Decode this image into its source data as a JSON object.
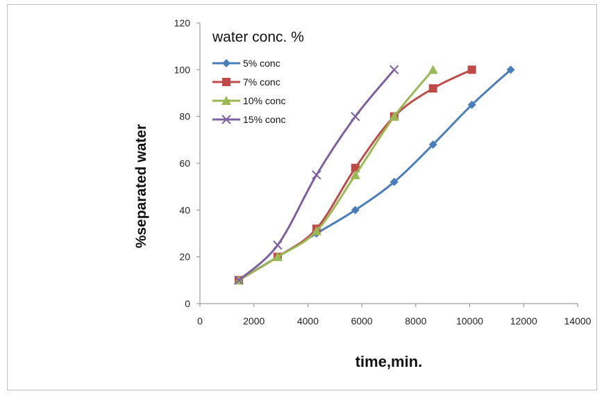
{
  "chart_data": {
    "type": "line",
    "title": "",
    "xlabel": "time,min.",
    "ylabel": "%separated  water",
    "xlim": [
      0,
      14000
    ],
    "ylim": [
      0,
      120
    ],
    "xticks": [
      0,
      2000,
      4000,
      6000,
      8000,
      10000,
      12000,
      14000
    ],
    "xtick_labels": [
      "0",
      "2000",
      "4000",
      "6000",
      "8000",
      "10000",
      "12000",
      "14000"
    ],
    "yticks": [
      0,
      20,
      40,
      60,
      80,
      100,
      120
    ],
    "ytick_labels": [
      "0",
      "20",
      "40",
      "60",
      "80",
      "100",
      "120"
    ],
    "grid": false,
    "legend_title": "water conc. %",
    "legend_position": "top-left",
    "series": [
      {
        "name": "5% conc",
        "color": "#4a7ebb",
        "marker": "diamond",
        "x": [
          1440,
          2880,
          4320,
          5760,
          7200,
          8640,
          10080,
          11520
        ],
        "y": [
          10,
          20,
          30,
          40,
          52,
          68,
          85,
          100
        ]
      },
      {
        "name": "7% conc",
        "color": "#be4b48",
        "marker": "square",
        "x": [
          1440,
          2880,
          4320,
          5760,
          7200,
          8640,
          10080
        ],
        "y": [
          10,
          20,
          32,
          58,
          80,
          92,
          100
        ]
      },
      {
        "name": "10% conc",
        "color": "#98b954",
        "marker": "triangle",
        "x": [
          1440,
          2880,
          4320,
          5760,
          7200,
          8640
        ],
        "y": [
          10,
          20,
          31,
          55,
          80,
          100
        ]
      },
      {
        "name": "15% conc",
        "color": "#7d60a0",
        "marker": "x",
        "x": [
          1440,
          2880,
          4320,
          5760,
          7200
        ],
        "y": [
          10,
          25,
          55,
          80,
          100
        ]
      }
    ]
  }
}
